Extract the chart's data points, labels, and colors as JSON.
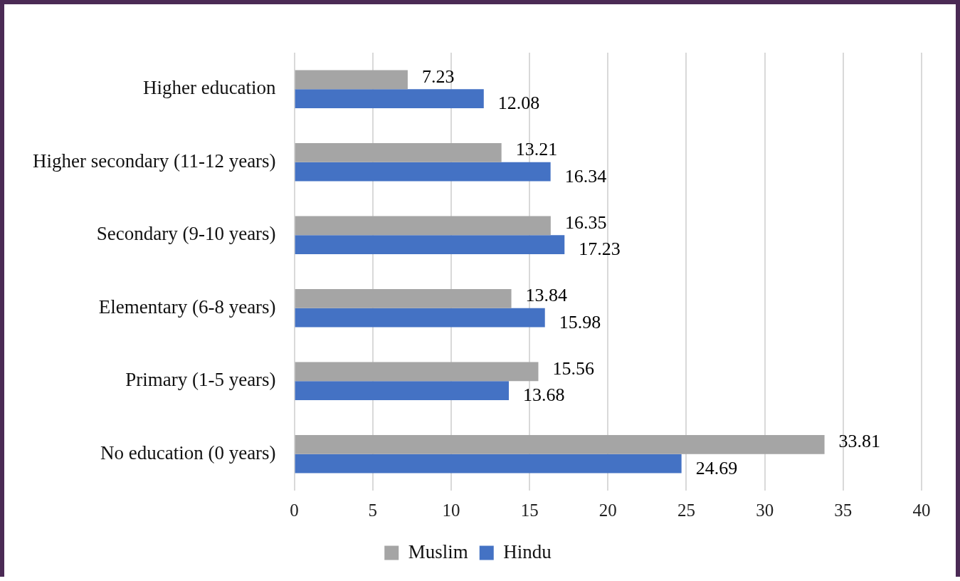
{
  "chart_data": {
    "type": "bar",
    "orientation": "horizontal",
    "categories": [
      "Higher education",
      "Higher secondary (11-12 years)",
      "Secondary (9-10 years)",
      "Elementary (6-8 years)",
      "Primary (1-5 years)",
      "No education (0 years)"
    ],
    "series": [
      {
        "name": "Muslim",
        "color": "#a5a5a5",
        "values": [
          7.23,
          13.21,
          16.35,
          13.84,
          15.56,
          33.81
        ]
      },
      {
        "name": "Hindu",
        "color": "#4472c4",
        "values": [
          12.08,
          16.34,
          17.23,
          15.98,
          13.68,
          24.69
        ]
      }
    ],
    "xlim": [
      0,
      40
    ],
    "xticks": [
      0,
      5,
      10,
      15,
      20,
      25,
      30,
      35,
      40
    ],
    "grid": "x",
    "legend": "bottom",
    "data_labels": true
  }
}
